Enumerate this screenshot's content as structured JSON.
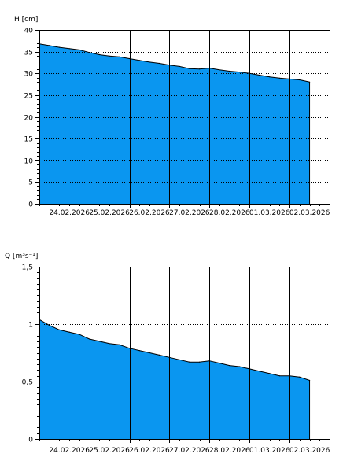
{
  "colors": {
    "fill": "#0a96f0",
    "outline": "#000000",
    "grid": "#000000",
    "background": "#ffffff"
  },
  "chart_data": [
    {
      "type": "area",
      "ylabel": "H [cm]",
      "ylim": [
        0,
        40
      ],
      "yticks": [
        0,
        5,
        10,
        15,
        20,
        25,
        30,
        35,
        40
      ],
      "ytick_labels": [
        "0",
        "5",
        "10",
        "15",
        "20",
        "25",
        "30",
        "35",
        "40"
      ],
      "xlim": [
        "2026-02-23 18:00",
        "2026-03-03 00:00"
      ],
      "x_tick_labels": [
        "24.02.2026",
        "25.02.2026",
        "26.02.2026",
        "27.02.2026",
        "28.02.2026",
        "01.03.2026",
        "02.03.2026"
      ],
      "x_gridlines": [
        "2026-02-25 00:00",
        "2026-02-26 00:00",
        "2026-02-27 00:00",
        "2026-02-28 00:00",
        "2026-03-01 00:00",
        "2026-03-02 00:00"
      ],
      "y_gridlines": [
        5,
        10,
        15,
        20,
        25,
        30,
        35
      ],
      "x": [
        "2026-02-23 18:00",
        "2026-02-24 00:00",
        "2026-02-24 06:00",
        "2026-02-24 12:00",
        "2026-02-24 18:00",
        "2026-02-25 00:00",
        "2026-02-25 06:00",
        "2026-02-25 12:00",
        "2026-02-25 18:00",
        "2026-02-26 00:00",
        "2026-02-26 06:00",
        "2026-02-26 12:00",
        "2026-02-26 18:00",
        "2026-02-27 00:00",
        "2026-02-27 06:00",
        "2026-02-27 12:00",
        "2026-02-27 18:00",
        "2026-02-28 00:00",
        "2026-02-28 06:00",
        "2026-02-28 12:00",
        "2026-02-28 18:00",
        "2026-03-01 00:00",
        "2026-03-01 06:00",
        "2026-03-01 12:00",
        "2026-03-01 18:00",
        "2026-03-02 00:00",
        "2026-03-02 06:00",
        "2026-03-02 12:00"
      ],
      "values": [
        36.8,
        36.4,
        36.0,
        35.7,
        35.4,
        34.8,
        34.3,
        34.0,
        33.8,
        33.4,
        33.0,
        32.6,
        32.3,
        31.9,
        31.6,
        31.1,
        31.0,
        31.2,
        30.8,
        30.5,
        30.3,
        30.0,
        29.6,
        29.2,
        28.9,
        28.7,
        28.5,
        28.0
      ]
    },
    {
      "type": "area",
      "ylabel": "Q [m³s⁻¹]",
      "ylim": [
        0,
        1.5
      ],
      "yticks": [
        0,
        0.5,
        1,
        1.5
      ],
      "ytick_labels": [
        "0",
        "0,5",
        "1",
        "1,5"
      ],
      "xlim": [
        "2026-02-23 18:00",
        "2026-03-03 00:00"
      ],
      "x_tick_labels": [
        "24.02.2026",
        "25.02.2026",
        "26.02.2026",
        "27.02.2026",
        "28.02.2026",
        "01.03.2026",
        "02.03.2026"
      ],
      "x_gridlines": [
        "2026-02-25 00:00",
        "2026-02-26 00:00",
        "2026-02-27 00:00",
        "2026-02-28 00:00",
        "2026-03-01 00:00",
        "2026-03-02 00:00"
      ],
      "y_gridlines": [
        0.5,
        1
      ],
      "x": [
        "2026-02-23 18:00",
        "2026-02-24 00:00",
        "2026-02-24 06:00",
        "2026-02-24 12:00",
        "2026-02-24 18:00",
        "2026-02-25 00:00",
        "2026-02-25 06:00",
        "2026-02-25 12:00",
        "2026-02-25 18:00",
        "2026-02-26 00:00",
        "2026-02-26 06:00",
        "2026-02-26 12:00",
        "2026-02-26 18:00",
        "2026-02-27 00:00",
        "2026-02-27 06:00",
        "2026-02-27 12:00",
        "2026-02-27 18:00",
        "2026-02-28 00:00",
        "2026-02-28 06:00",
        "2026-02-28 12:00",
        "2026-02-28 18:00",
        "2026-03-01 00:00",
        "2026-03-01 06:00",
        "2026-03-01 12:00",
        "2026-03-01 18:00",
        "2026-03-02 00:00",
        "2026-03-02 06:00",
        "2026-03-02 12:00"
      ],
      "values": [
        1.04,
        0.99,
        0.95,
        0.93,
        0.91,
        0.87,
        0.85,
        0.83,
        0.82,
        0.79,
        0.77,
        0.75,
        0.73,
        0.71,
        0.69,
        0.67,
        0.67,
        0.68,
        0.66,
        0.64,
        0.63,
        0.61,
        0.59,
        0.57,
        0.55,
        0.55,
        0.54,
        0.51
      ]
    }
  ]
}
